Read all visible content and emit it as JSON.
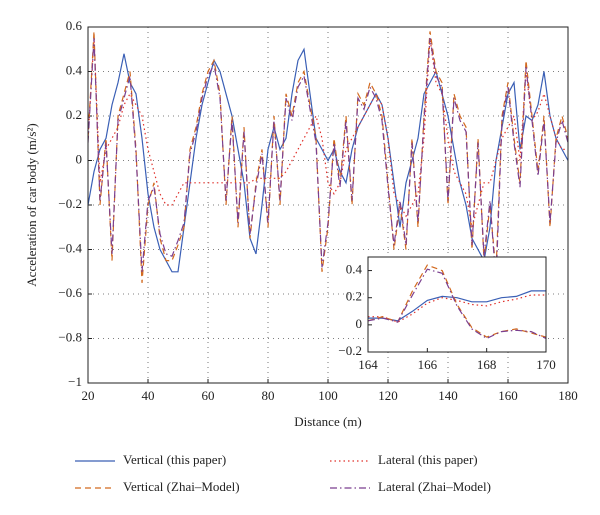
{
  "chart_data": [
    {
      "type": "line",
      "xlabel": "Distance (m)",
      "ylabel": "Acceleration of car body (m/s²)",
      "xlim": [
        20,
        180
      ],
      "xticks": [
        20,
        40,
        60,
        80,
        100,
        120,
        140,
        160,
        180
      ],
      "ylim": [
        -1,
        0.6
      ],
      "yticks": [
        {
          "value": -1,
          "label": "−1"
        },
        {
          "value": -0.8,
          "label": "−0.8"
        },
        {
          "value": -0.6,
          "label": "−0.6"
        },
        {
          "value": -0.4,
          "label": "−0.4"
        },
        {
          "value": -0.2,
          "label": "−0.2"
        },
        0,
        0.2,
        0.4,
        0.6
      ],
      "grid": true,
      "x": [
        20,
        22,
        24,
        26,
        28,
        30,
        32,
        34,
        36,
        38,
        40,
        42,
        44,
        46,
        48,
        50,
        52,
        54,
        56,
        58,
        60,
        62,
        64,
        66,
        68,
        70,
        72,
        74,
        76,
        78,
        80,
        82,
        84,
        86,
        88,
        90,
        92,
        94,
        96,
        98,
        100,
        102,
        104,
        106,
        108,
        110,
        112,
        114,
        116,
        118,
        120,
        122,
        124,
        126,
        128,
        130,
        132,
        134,
        136,
        138,
        140,
        142,
        144,
        146,
        148,
        150,
        152,
        154,
        156,
        158,
        160,
        162,
        164,
        166,
        168,
        170,
        172,
        174,
        176,
        178,
        180
      ],
      "series": [
        {
          "name": "Vertical (this paper)",
          "color": "#3a5fb5",
          "dash": "solid",
          "values": [
            -0.2,
            -0.05,
            0.05,
            0.1,
            0.25,
            0.35,
            0.48,
            0.35,
            0.3,
            0.1,
            -0.15,
            -0.3,
            -0.4,
            -0.45,
            -0.5,
            -0.5,
            -0.3,
            -0.1,
            0.1,
            0.25,
            0.35,
            0.45,
            0.4,
            0.3,
            0.2,
            0.05,
            -0.1,
            -0.35,
            -0.42,
            -0.2,
            0.05,
            0.15,
            0.05,
            0.1,
            0.3,
            0.45,
            0.5,
            0.3,
            0.1,
            0.05,
            0,
            0.05,
            -0.05,
            -0.1,
            0.05,
            0.15,
            0.2,
            0.25,
            0.3,
            0.25,
            0.1,
            -0.1,
            -0.3,
            -0.1,
            0,
            0.1,
            0.3,
            0.35,
            0.4,
            0.3,
            0.2,
            0.05,
            -0.1,
            -0.2,
            -0.35,
            -0.4,
            -0.45,
            -0.3,
            0,
            0.15,
            0.3,
            0.35,
            0.05,
            0.2,
            0.18,
            0.25,
            0.4,
            0.2,
            0.1,
            0.05,
            0
          ]
        },
        {
          "name": "Lateral (this paper)",
          "color": "#e0302a",
          "dash": "dotted",
          "values": [
            0.1,
            0.55,
            -0.1,
            0.05,
            0.1,
            0.15,
            0.25,
            0.3,
            0.25,
            0.2,
            0.05,
            -0.05,
            -0.15,
            -0.2,
            -0.2,
            -0.15,
            -0.1,
            -0.1,
            -0.1,
            -0.1,
            -0.1,
            -0.1,
            -0.1,
            -0.1,
            -0.1,
            -0.1,
            -0.1,
            -0.1,
            -0.08,
            -0.08,
            -0.08,
            -0.08,
            -0.08,
            -0.05,
            0,
            0.05,
            0.1,
            0.15,
            0.2,
            0.1,
            -0.1,
            -0.15,
            -0.1,
            0.05,
            0.1,
            0.15,
            0.2,
            0.25,
            0.3,
            0.25,
            0.1,
            -0.15,
            -0.2,
            -0.25,
            -0.2,
            -0.15,
            0.1,
            0.55,
            0.35,
            0.3,
            0.1,
            -0.05,
            -0.1,
            -0.15,
            -0.3,
            -0.2,
            -0.1,
            -0.1,
            0,
            0.1,
            0.15,
            0.2,
            0,
            0.4,
            0.18,
            0.22,
            0.3,
            0.2,
            0.1,
            0.05,
            0.05
          ]
        },
        {
          "name": "Vertical (Zhai–Model)",
          "color": "#d2691e",
          "dash": "dashed",
          "values": [
            0.1,
            0.58,
            -0.2,
            0.1,
            -0.45,
            0.2,
            0.3,
            0.4,
            0.05,
            -0.55,
            -0.2,
            -0.1,
            -0.35,
            -0.45,
            -0.45,
            -0.38,
            -0.3,
            0.05,
            0.15,
            0.3,
            0.4,
            0.45,
            0.3,
            -0.2,
            0.2,
            -0.3,
            0.15,
            -0.35,
            -0.1,
            0.05,
            -0.3,
            0.2,
            -0.2,
            0.3,
            0.2,
            0.35,
            0.4,
            0.25,
            0.1,
            -0.5,
            -0.3,
            0.1,
            -0.1,
            0.2,
            -0.2,
            0.3,
            0.25,
            0.35,
            0.3,
            0.2,
            -0.1,
            -0.4,
            -0.2,
            -0.4,
            0.1,
            -0.3,
            0.2,
            0.58,
            0.4,
            0.35,
            -0.2,
            0.3,
            0.2,
            0.15,
            -0.4,
            0.1,
            -0.45,
            -0.2,
            -0.5,
            0.2,
            0.35,
            0.1,
            -0.1,
            0.45,
            0.2,
            -0.05,
            0.2,
            -0.3,
            0.1,
            0.2,
            0.1
          ]
        },
        {
          "name": "Lateral (Zhai–Model)",
          "color": "#7b3f8f",
          "dash": "dashdot",
          "values": [
            0.08,
            0.55,
            -0.18,
            0.08,
            -0.42,
            0.18,
            0.28,
            0.38,
            0.03,
            -0.5,
            -0.18,
            -0.12,
            -0.33,
            -0.42,
            -0.43,
            -0.36,
            -0.28,
            0.03,
            0.13,
            0.28,
            0.38,
            0.43,
            0.28,
            -0.18,
            0.18,
            -0.28,
            0.13,
            -0.33,
            -0.12,
            0.03,
            -0.28,
            0.18,
            -0.18,
            0.28,
            0.18,
            0.33,
            0.38,
            0.23,
            0.08,
            -0.48,
            -0.28,
            0.08,
            -0.12,
            0.18,
            -0.18,
            0.28,
            0.23,
            0.33,
            0.28,
            0.18,
            -0.12,
            -0.38,
            -0.18,
            -0.38,
            0.08,
            -0.28,
            0.18,
            0.55,
            0.38,
            0.33,
            -0.18,
            0.28,
            0.18,
            0.13,
            -0.38,
            0.08,
            -0.43,
            -0.18,
            -0.55,
            0.18,
            0.33,
            0.08,
            -0.12,
            0.42,
            0.18,
            -0.07,
            0.18,
            -0.28,
            0.08,
            0.18,
            0.08
          ]
        }
      ]
    },
    {
      "type": "line",
      "xlim": [
        164,
        170
      ],
      "xticks": [
        164,
        166,
        168,
        170
      ],
      "ylim": [
        -0.2,
        0.5
      ],
      "yticks": [
        {
          "value": -0.2,
          "label": "−0.2"
        },
        0,
        0.2,
        0.4
      ],
      "x": [
        164,
        164.5,
        165,
        165.5,
        166,
        166.5,
        167,
        167.5,
        168,
        168.5,
        169,
        169.5,
        170
      ],
      "series": [
        {
          "color": "#3a5fb5",
          "dash": "solid",
          "values": [
            0.05,
            0.05,
            0.03,
            0.1,
            0.18,
            0.21,
            0.2,
            0.17,
            0.17,
            0.2,
            0.21,
            0.25,
            0.25
          ]
        },
        {
          "color": "#e0302a",
          "dash": "dotted",
          "values": [
            0.06,
            0.06,
            0.02,
            0.08,
            0.16,
            0.2,
            0.18,
            0.15,
            0.14,
            0.17,
            0.19,
            0.22,
            0.22
          ]
        },
        {
          "color": "#d2691e",
          "dash": "dashed",
          "values": [
            0.03,
            0.06,
            0.02,
            0.25,
            0.44,
            0.4,
            0.15,
            -0.02,
            -0.09,
            -0.05,
            -0.03,
            -0.06,
            -0.09
          ]
        },
        {
          "color": "#7b3f8f",
          "dash": "dashdot",
          "values": [
            0.03,
            0.05,
            0.02,
            0.22,
            0.41,
            0.38,
            0.14,
            -0.03,
            -0.1,
            -0.05,
            -0.04,
            -0.05,
            -0.1
          ]
        }
      ]
    }
  ]
}
